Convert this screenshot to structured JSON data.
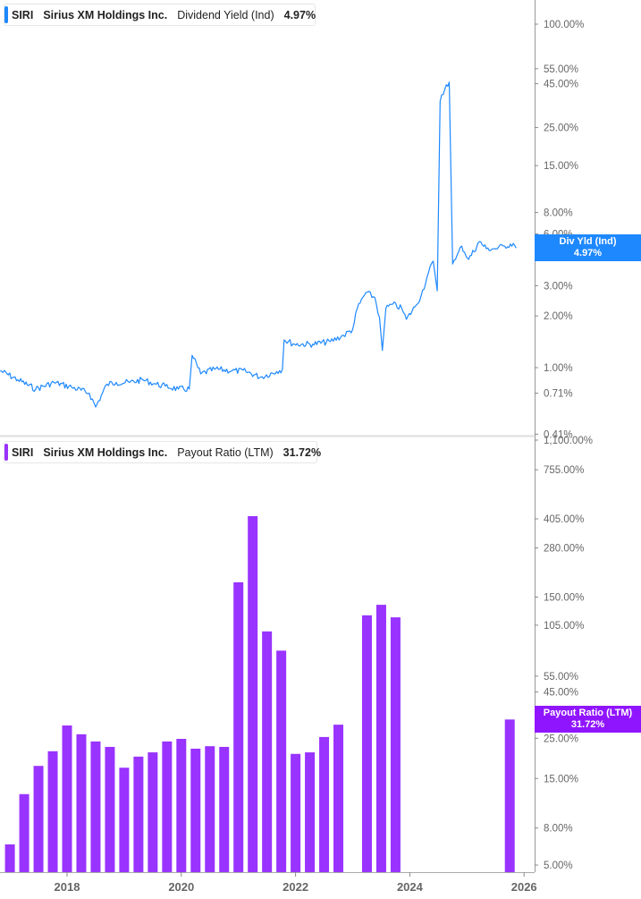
{
  "colors": {
    "yield": "#1e88ff",
    "payout": "#9933ff",
    "axis": "#999999"
  },
  "top_legend": {
    "ticker": "SIRI",
    "company": "Sirius XM Holdings Inc.",
    "metric": "Dividend Yield (Ind)",
    "value": "4.97%"
  },
  "bottom_legend": {
    "ticker": "SIRI",
    "company": "Sirius XM Holdings Inc.",
    "metric": "Payout Ratio (LTM)",
    "value": "31.72%"
  },
  "top_flag": {
    "label": "Div Yld (Ind)",
    "value": "4.97%"
  },
  "bottom_flag": {
    "label": "Payout Ratio (LTM)",
    "value": "31.72%"
  },
  "chart_data": [
    {
      "type": "line",
      "scale": "log",
      "ylim": [
        0.4,
        138
      ],
      "y_ticks": [
        {
          "value": 100,
          "label": "100.00%"
        },
        {
          "value": 55,
          "label": "55.00%"
        },
        {
          "value": 45,
          "label": "45.00%"
        },
        {
          "value": 25,
          "label": "25.00%"
        },
        {
          "value": 15,
          "label": "15.00%"
        },
        {
          "value": 8,
          "label": "8.00%"
        },
        {
          "value": 6,
          "label": "6.00%"
        },
        {
          "value": 3,
          "label": "3.00%"
        },
        {
          "value": 2,
          "label": "2.00%"
        },
        {
          "value": 1,
          "label": "1.00%"
        },
        {
          "value": 0.71,
          "label": "0.71%"
        },
        {
          "value": 0.41,
          "label": "0.41%"
        }
      ],
      "series": [
        {
          "name": "Dividend Yield (Ind)",
          "points": [
            [
              2016.83,
              0.96
            ],
            [
              2017.14,
              0.85
            ],
            [
              2017.45,
              0.75
            ],
            [
              2017.77,
              0.82
            ],
            [
              2018.08,
              0.77
            ],
            [
              2018.39,
              0.71
            ],
            [
              2018.5,
              0.59
            ],
            [
              2018.7,
              0.8
            ],
            [
              2018.86,
              0.82
            ],
            [
              2019.09,
              0.82
            ],
            [
              2019.33,
              0.85
            ],
            [
              2019.56,
              0.8
            ],
            [
              2019.72,
              0.78
            ],
            [
              2019.95,
              0.75
            ],
            [
              2020.14,
              0.75
            ],
            [
              2020.19,
              1.18
            ],
            [
              2020.34,
              0.92
            ],
            [
              2020.58,
              0.98
            ],
            [
              2020.89,
              0.96
            ],
            [
              2021.13,
              0.95
            ],
            [
              2021.39,
              0.88
            ],
            [
              2021.67,
              0.95
            ],
            [
              2021.77,
              0.98
            ],
            [
              2021.8,
              1.45
            ],
            [
              2021.98,
              1.37
            ],
            [
              2022.3,
              1.37
            ],
            [
              2022.61,
              1.42
            ],
            [
              2022.84,
              1.54
            ],
            [
              2023.0,
              1.67
            ],
            [
              2023.08,
              2.21
            ],
            [
              2023.23,
              2.74
            ],
            [
              2023.39,
              2.55
            ],
            [
              2023.47,
              1.96
            ],
            [
              2023.52,
              1.26
            ],
            [
              2023.58,
              2.21
            ],
            [
              2023.7,
              2.34
            ],
            [
              2023.86,
              2.21
            ],
            [
              2023.94,
              1.91
            ],
            [
              2024.09,
              2.26
            ],
            [
              2024.2,
              2.64
            ],
            [
              2024.3,
              3.36
            ],
            [
              2024.41,
              4.17
            ],
            [
              2024.48,
              2.8
            ],
            [
              2024.53,
              35.5
            ],
            [
              2024.64,
              44.4
            ],
            [
              2024.69,
              46.0
            ],
            [
              2024.75,
              4.01
            ],
            [
              2024.8,
              4.27
            ],
            [
              2024.91,
              5.1
            ],
            [
              2025.03,
              4.27
            ],
            [
              2025.22,
              5.42
            ],
            [
              2025.34,
              4.93
            ],
            [
              2025.5,
              4.93
            ],
            [
              2025.66,
              5.1
            ],
            [
              2025.81,
              5.29
            ],
            [
              2025.86,
              4.97
            ]
          ]
        }
      ]
    },
    {
      "type": "bar",
      "scale": "log",
      "ylim": [
        4.18,
        1163
      ],
      "y_ticks": [
        {
          "value": 1100,
          "label": "1,100.00%"
        },
        {
          "value": 755,
          "label": "755.00%"
        },
        {
          "value": 405,
          "label": "405.00%"
        },
        {
          "value": 280,
          "label": "280.00%"
        },
        {
          "value": 150,
          "label": "150.00%"
        },
        {
          "value": 105,
          "label": "105.00%"
        },
        {
          "value": 55,
          "label": "55.00%"
        },
        {
          "value": 45,
          "label": "45.00%"
        },
        {
          "value": 25,
          "label": "25.00%"
        },
        {
          "value": 15,
          "label": "15.00%"
        },
        {
          "value": 8,
          "label": "8.00%"
        },
        {
          "value": 5,
          "label": "5.00%"
        }
      ],
      "x_ticks": [
        {
          "value": 2018,
          "label": "2018"
        },
        {
          "value": 2020,
          "label": "2020"
        },
        {
          "value": 2022,
          "label": "2022"
        },
        {
          "value": 2024,
          "label": "2024"
        },
        {
          "value": 2026,
          "label": "2026"
        }
      ],
      "categories": [
        "Q1 2017",
        "Q2 2017",
        "Q3 2017",
        "Q4 2017",
        "Q1 2018",
        "Q2 2018",
        "Q3 2018",
        "Q4 2018",
        "Q1 2019",
        "Q2 2019",
        "Q3 2019",
        "Q4 2019",
        "Q1 2020",
        "Q2 2020",
        "Q3 2020",
        "Q4 2020",
        "Q1 2021",
        "Q2 2021",
        "Q3 2021",
        "Q4 2021",
        "Q1 2022",
        "Q2 2022",
        "Q3 2022",
        "Q4 2022",
        "Q1 2023",
        "Q2 2023",
        "Q3 2023",
        "Q4 2023",
        "Q1 2024",
        "Q2 2024",
        "Q3 2024",
        "Q4 2024",
        "Q1 2025",
        "Q2 2025",
        "Q3 2025",
        "Q4 2025"
      ],
      "series": [
        {
          "name": "Payout Ratio (LTM)",
          "values": [
            6.5,
            12.3,
            17.6,
            21.2,
            29.4,
            26.3,
            24.0,
            22.4,
            17.2,
            19.8,
            20.9,
            24.0,
            24.8,
            21.9,
            22.6,
            22.4,
            181,
            419,
            97,
            76,
            20.5,
            20.9,
            25.4,
            29.7,
            null,
            119,
            136,
            116,
            null,
            null,
            null,
            null,
            null,
            null,
            null,
            31.72
          ]
        }
      ]
    }
  ]
}
